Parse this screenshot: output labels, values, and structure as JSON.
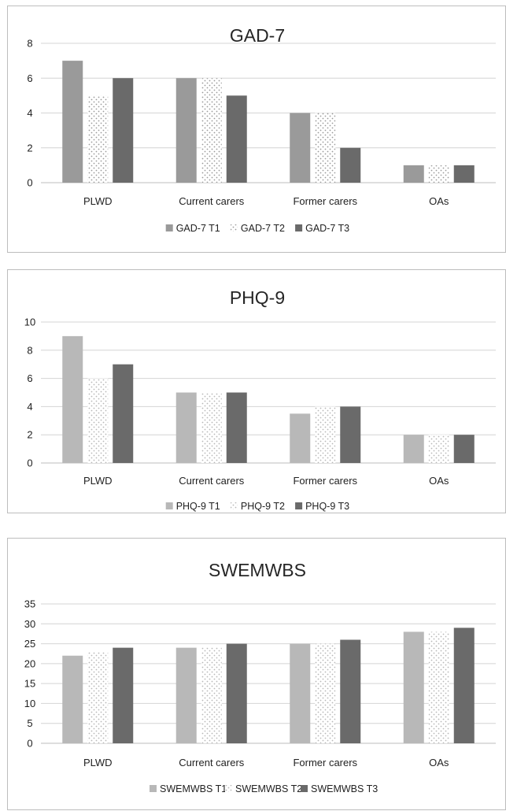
{
  "chart_data": [
    {
      "type": "bar",
      "title": "GAD-7",
      "categories": [
        "PLWD",
        "Current carers",
        "Former carers",
        "OAs"
      ],
      "ylim": [
        0,
        8
      ],
      "yticks": [
        0,
        2,
        4,
        6,
        8
      ],
      "grid": true,
      "legend": "bottom",
      "series": [
        {
          "name": "GAD-7 T1",
          "values": [
            7,
            6,
            4,
            1
          ],
          "color": "#9a9a9a",
          "pattern": "solid"
        },
        {
          "name": "GAD-7 T2",
          "values": [
            5,
            6,
            4,
            1
          ],
          "color": "#9a9a9a",
          "pattern": "dots"
        },
        {
          "name": "GAD-7 T3",
          "values": [
            6,
            5,
            2,
            1
          ],
          "color": "#6a6a6a",
          "pattern": "solid"
        }
      ]
    },
    {
      "type": "bar",
      "title": "PHQ-9",
      "categories": [
        "PLWD",
        "Current carers",
        "Former carers",
        "OAs"
      ],
      "ylim": [
        0,
        10
      ],
      "yticks": [
        0,
        2,
        4,
        6,
        8,
        10
      ],
      "grid": true,
      "legend": "bottom",
      "series": [
        {
          "name": "PHQ-9 T1",
          "values": [
            9,
            5,
            3.5,
            2
          ],
          "color": "#b8b8b8",
          "pattern": "solid"
        },
        {
          "name": "PHQ-9 T2",
          "values": [
            6,
            5,
            4,
            2
          ],
          "color": "#b8b8b8",
          "pattern": "dots"
        },
        {
          "name": "PHQ-9 T3",
          "values": [
            7,
            5,
            4,
            2
          ],
          "color": "#6a6a6a",
          "pattern": "solid"
        }
      ]
    },
    {
      "type": "bar",
      "title": "SWEMWBS",
      "categories": [
        "PLWD",
        "Current carers",
        "Former carers",
        "OAs"
      ],
      "ylim": [
        0,
        35
      ],
      "yticks": [
        0,
        5,
        10,
        15,
        20,
        25,
        30,
        35
      ],
      "grid": true,
      "legend": "bottom",
      "series": [
        {
          "name": "SWEMWBS T1",
          "values": [
            22,
            24,
            25,
            28
          ],
          "color": "#b8b8b8",
          "pattern": "solid"
        },
        {
          "name": "SWEMWBS T2",
          "values": [
            23,
            24,
            25,
            28
          ],
          "color": "#b8b8b8",
          "pattern": "dots"
        },
        {
          "name": "SWEMWBS T3",
          "values": [
            24,
            25,
            26,
            29
          ],
          "color": "#6a6a6a",
          "pattern": "solid"
        }
      ]
    }
  ]
}
